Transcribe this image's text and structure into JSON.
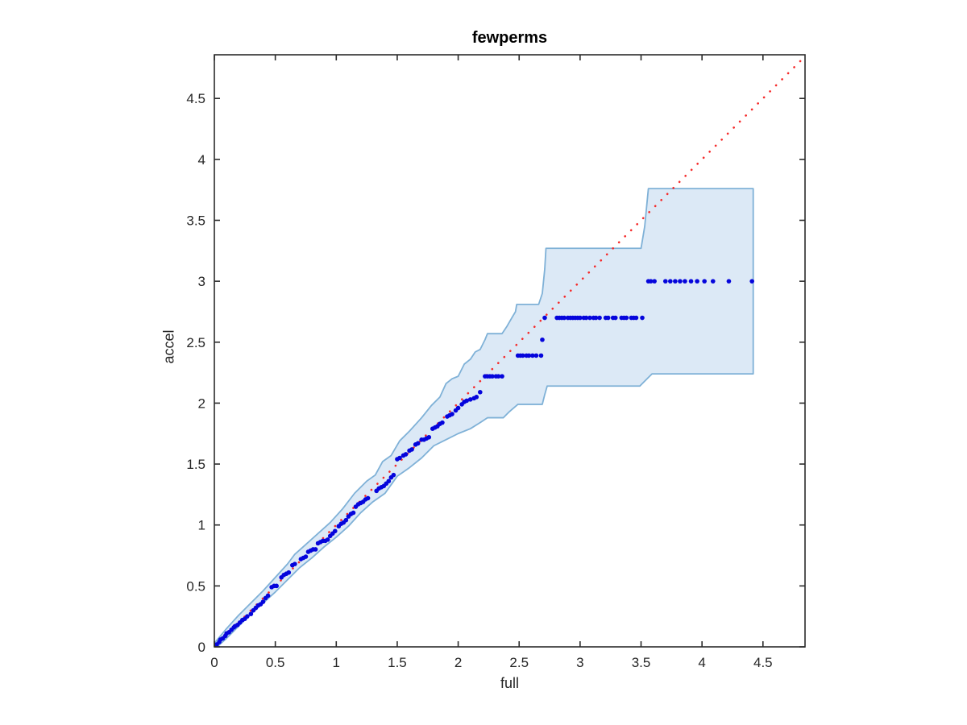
{
  "figure": {
    "title": "fewperms",
    "xlabel": "full",
    "ylabel": "accel"
  },
  "chart_data": {
    "type": "scatter",
    "title": "fewperms",
    "xlabel": "full",
    "ylabel": "accel",
    "xlim": [
      0,
      4.845
    ],
    "ylim": [
      0,
      4.858
    ],
    "grid": false,
    "legend": "none",
    "xticks": [
      0,
      0.5,
      1,
      1.5,
      2,
      2.5,
      3,
      3.5,
      4,
      4.5
    ],
    "xtick_labels": [
      "0",
      "0.5",
      "1",
      "1.5",
      "2",
      "2.5",
      "3",
      "3.5",
      "4",
      "4.5"
    ],
    "yticks": [
      0,
      0.5,
      1,
      1.5,
      2,
      2.5,
      3,
      3.5,
      4,
      4.5
    ],
    "ytick_labels": [
      "0",
      "0.5",
      "1",
      "1.5",
      "2",
      "2.5",
      "3",
      "3.5",
      "4",
      "4.5"
    ],
    "colors": {
      "scatter": "#0505dc",
      "reference_line": "#f52b2b",
      "band_fill": "#dce9f6",
      "band_edge": "#7fb1d7",
      "axis": "#2b2b2b",
      "tick_text": "#262626"
    },
    "series": [
      {
        "name": "confidence-band",
        "type": "band",
        "upper": [
          [
            0,
            0.03
          ],
          [
            0.1,
            0.15
          ],
          [
            0.2,
            0.26
          ],
          [
            0.3,
            0.36
          ],
          [
            0.4,
            0.46
          ],
          [
            0.5,
            0.57
          ],
          [
            0.6,
            0.68
          ],
          [
            0.66,
            0.76
          ],
          [
            0.75,
            0.84
          ],
          [
            0.85,
            0.93
          ],
          [
            0.95,
            1.02
          ],
          [
            1.05,
            1.13
          ],
          [
            1.15,
            1.26
          ],
          [
            1.25,
            1.36
          ],
          [
            1.32,
            1.41
          ],
          [
            1.38,
            1.52
          ],
          [
            1.45,
            1.57
          ],
          [
            1.52,
            1.69
          ],
          [
            1.6,
            1.77
          ],
          [
            1.7,
            1.88
          ],
          [
            1.78,
            1.98
          ],
          [
            1.85,
            2.05
          ],
          [
            1.9,
            2.16
          ],
          [
            1.95,
            2.2
          ],
          [
            2.0,
            2.22
          ],
          [
            2.05,
            2.32
          ],
          [
            2.1,
            2.36
          ],
          [
            2.14,
            2.42
          ],
          [
            2.18,
            2.44
          ],
          [
            2.22,
            2.52
          ],
          [
            2.24,
            2.57
          ],
          [
            2.36,
            2.57
          ],
          [
            2.4,
            2.63
          ],
          [
            2.44,
            2.7
          ],
          [
            2.47,
            2.75
          ],
          [
            2.48,
            2.81
          ],
          [
            2.66,
            2.81
          ],
          [
            2.69,
            2.9
          ],
          [
            2.71,
            3.1
          ],
          [
            2.72,
            3.27
          ],
          [
            3.5,
            3.27
          ],
          [
            3.53,
            3.45
          ],
          [
            3.56,
            3.76
          ],
          [
            4.42,
            3.76
          ]
        ],
        "lower": [
          [
            0,
            -0.02
          ],
          [
            0.1,
            0.07
          ],
          [
            0.2,
            0.17
          ],
          [
            0.3,
            0.27
          ],
          [
            0.4,
            0.36
          ],
          [
            0.5,
            0.45
          ],
          [
            0.6,
            0.55
          ],
          [
            0.7,
            0.65
          ],
          [
            0.8,
            0.73
          ],
          [
            0.9,
            0.82
          ],
          [
            1.0,
            0.9
          ],
          [
            1.1,
            0.99
          ],
          [
            1.2,
            1.1
          ],
          [
            1.3,
            1.19
          ],
          [
            1.4,
            1.26
          ],
          [
            1.5,
            1.4
          ],
          [
            1.6,
            1.47
          ],
          [
            1.7,
            1.55
          ],
          [
            1.8,
            1.65
          ],
          [
            1.9,
            1.7
          ],
          [
            2.0,
            1.75
          ],
          [
            2.1,
            1.79
          ],
          [
            2.18,
            1.84
          ],
          [
            2.24,
            1.88
          ],
          [
            2.37,
            1.88
          ],
          [
            2.42,
            1.93
          ],
          [
            2.49,
            1.99
          ],
          [
            2.69,
            1.99
          ],
          [
            2.71,
            2.07
          ],
          [
            2.73,
            2.14
          ],
          [
            3.49,
            2.14
          ],
          [
            3.55,
            2.2
          ],
          [
            3.59,
            2.24
          ],
          [
            4.42,
            2.24
          ]
        ]
      },
      {
        "name": "reference-line",
        "type": "line",
        "style": "dotted",
        "points": [
          [
            0,
            0
          ],
          [
            4.845,
            4.845
          ]
        ]
      },
      {
        "name": "quantile-points",
        "type": "scatter",
        "marker": "filled-circle",
        "points": [
          [
            0.01,
            0.01
          ],
          [
            0.02,
            0.02
          ],
          [
            0.04,
            0.04
          ],
          [
            0.05,
            0.06
          ],
          [
            0.07,
            0.07
          ],
          [
            0.09,
            0.09
          ],
          [
            0.1,
            0.11
          ],
          [
            0.12,
            0.12
          ],
          [
            0.14,
            0.14
          ],
          [
            0.16,
            0.16
          ],
          [
            0.17,
            0.17
          ],
          [
            0.19,
            0.18
          ],
          [
            0.21,
            0.2
          ],
          [
            0.23,
            0.22
          ],
          [
            0.25,
            0.23
          ],
          [
            0.27,
            0.25
          ],
          [
            0.3,
            0.27
          ],
          [
            0.32,
            0.3
          ],
          [
            0.34,
            0.32
          ],
          [
            0.36,
            0.34
          ],
          [
            0.38,
            0.35
          ],
          [
            0.4,
            0.37
          ],
          [
            0.42,
            0.4
          ],
          [
            0.44,
            0.42
          ],
          [
            0.47,
            0.49
          ],
          [
            0.49,
            0.5
          ],
          [
            0.51,
            0.5
          ],
          [
            0.55,
            0.57
          ],
          [
            0.57,
            0.59
          ],
          [
            0.59,
            0.6
          ],
          [
            0.61,
            0.61
          ],
          [
            0.64,
            0.67
          ],
          [
            0.66,
            0.68
          ],
          [
            0.71,
            0.72
          ],
          [
            0.73,
            0.73
          ],
          [
            0.75,
            0.74
          ],
          [
            0.77,
            0.78
          ],
          [
            0.79,
            0.79
          ],
          [
            0.81,
            0.8
          ],
          [
            0.83,
            0.8
          ],
          [
            0.85,
            0.85
          ],
          [
            0.87,
            0.86
          ],
          [
            0.89,
            0.87
          ],
          [
            0.91,
            0.87
          ],
          [
            0.93,
            0.88
          ],
          [
            0.95,
            0.91
          ],
          [
            0.97,
            0.93
          ],
          [
            0.99,
            0.95
          ],
          [
            1.02,
            0.99
          ],
          [
            1.04,
            1.01
          ],
          [
            1.06,
            1.02
          ],
          [
            1.08,
            1.04
          ],
          [
            1.1,
            1.07
          ],
          [
            1.12,
            1.09
          ],
          [
            1.14,
            1.1
          ],
          [
            1.16,
            1.15
          ],
          [
            1.18,
            1.17
          ],
          [
            1.2,
            1.18
          ],
          [
            1.22,
            1.19
          ],
          [
            1.24,
            1.21
          ],
          [
            1.26,
            1.22
          ],
          [
            1.33,
            1.28
          ],
          [
            1.35,
            1.3
          ],
          [
            1.37,
            1.31
          ],
          [
            1.39,
            1.32
          ],
          [
            1.41,
            1.34
          ],
          [
            1.43,
            1.36
          ],
          [
            1.45,
            1.39
          ],
          [
            1.47,
            1.41
          ],
          [
            1.5,
            1.54
          ],
          [
            1.52,
            1.55
          ],
          [
            1.55,
            1.57
          ],
          [
            1.57,
            1.58
          ],
          [
            1.6,
            1.61
          ],
          [
            1.62,
            1.62
          ],
          [
            1.65,
            1.66
          ],
          [
            1.67,
            1.67
          ],
          [
            1.7,
            1.7
          ],
          [
            1.72,
            1.7
          ],
          [
            1.74,
            1.71
          ],
          [
            1.76,
            1.72
          ],
          [
            1.79,
            1.79
          ],
          [
            1.81,
            1.8
          ],
          [
            1.83,
            1.81
          ],
          [
            1.85,
            1.83
          ],
          [
            1.87,
            1.84
          ],
          [
            1.91,
            1.89
          ],
          [
            1.93,
            1.9
          ],
          [
            1.95,
            1.91
          ],
          [
            1.98,
            1.94
          ],
          [
            2.0,
            1.96
          ],
          [
            2.03,
            1.99
          ],
          [
            2.05,
            2.01
          ],
          [
            2.07,
            2.02
          ],
          [
            2.1,
            2.03
          ],
          [
            2.13,
            2.04
          ],
          [
            2.15,
            2.05
          ],
          [
            2.18,
            2.09
          ],
          [
            2.22,
            2.22
          ],
          [
            2.24,
            2.22
          ],
          [
            2.26,
            2.22
          ],
          [
            2.28,
            2.22
          ],
          [
            2.31,
            2.22
          ],
          [
            2.33,
            2.22
          ],
          [
            2.36,
            2.22
          ],
          [
            2.49,
            2.39
          ],
          [
            2.51,
            2.39
          ],
          [
            2.53,
            2.39
          ],
          [
            2.56,
            2.39
          ],
          [
            2.58,
            2.39
          ],
          [
            2.61,
            2.39
          ],
          [
            2.64,
            2.39
          ],
          [
            2.68,
            2.39
          ],
          [
            2.69,
            2.52
          ],
          [
            2.71,
            2.7
          ],
          [
            2.81,
            2.7
          ],
          [
            2.83,
            2.7
          ],
          [
            2.85,
            2.7
          ],
          [
            2.87,
            2.7
          ],
          [
            2.9,
            2.7
          ],
          [
            2.92,
            2.7
          ],
          [
            2.94,
            2.7
          ],
          [
            2.96,
            2.7
          ],
          [
            2.98,
            2.7
          ],
          [
            3.0,
            2.7
          ],
          [
            3.03,
            2.7
          ],
          [
            3.05,
            2.7
          ],
          [
            3.08,
            2.7
          ],
          [
            3.11,
            2.7
          ],
          [
            3.13,
            2.7
          ],
          [
            3.16,
            2.7
          ],
          [
            3.21,
            2.7
          ],
          [
            3.23,
            2.7
          ],
          [
            3.27,
            2.7
          ],
          [
            3.29,
            2.7
          ],
          [
            3.34,
            2.7
          ],
          [
            3.36,
            2.7
          ],
          [
            3.38,
            2.7
          ],
          [
            3.42,
            2.7
          ],
          [
            3.44,
            2.7
          ],
          [
            3.46,
            2.7
          ],
          [
            3.51,
            2.7
          ],
          [
            3.56,
            3.0
          ],
          [
            3.58,
            3.0
          ],
          [
            3.61,
            3.0
          ],
          [
            3.7,
            3.0
          ],
          [
            3.74,
            3.0
          ],
          [
            3.78,
            3.0
          ],
          [
            3.82,
            3.0
          ],
          [
            3.86,
            3.0
          ],
          [
            3.91,
            3.0
          ],
          [
            3.96,
            3.0
          ],
          [
            4.02,
            3.0
          ],
          [
            4.09,
            3.0
          ],
          [
            4.22,
            3.0
          ],
          [
            4.41,
            3.0
          ]
        ]
      }
    ]
  }
}
